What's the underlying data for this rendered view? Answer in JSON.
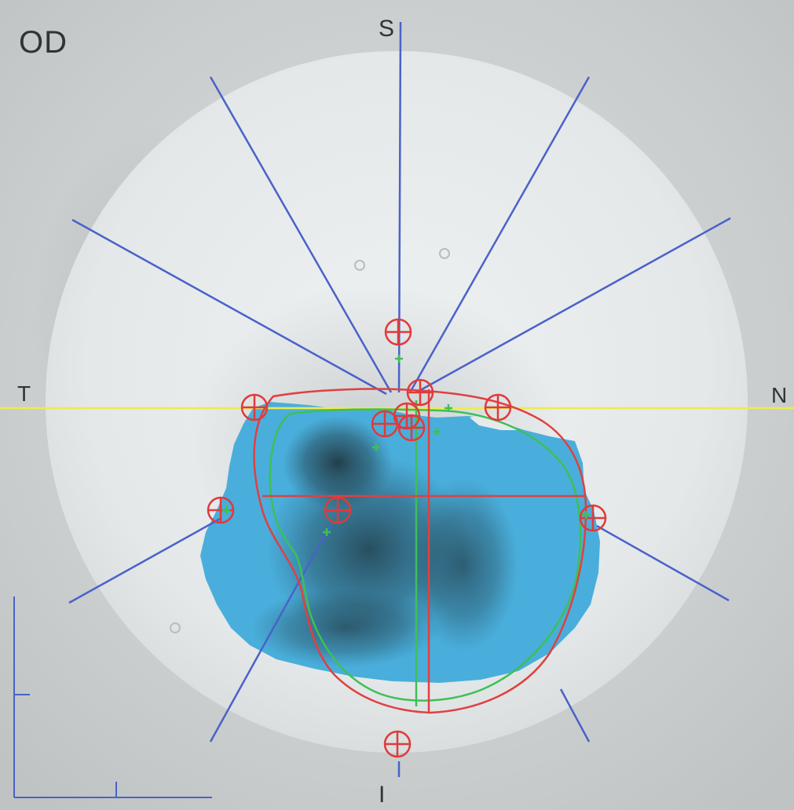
{
  "eye_label": "OD",
  "orientation": {
    "superior": "S",
    "inferior": "I",
    "temporal": "T",
    "nasal": "N"
  },
  "colors": {
    "background": "#c9cdcd",
    "scan_disc": "#e6eaeb",
    "cup_area": "#49aedb",
    "radial_lines": "#4a62c8",
    "horizontal_line": "#ecec4c",
    "disc_contour": "#e04040",
    "cup_contour": "#3fbf56",
    "markers": "#e03a3a"
  },
  "icons": [
    "crosshair-marker-icon",
    "small-plus-marker-icon"
  ]
}
